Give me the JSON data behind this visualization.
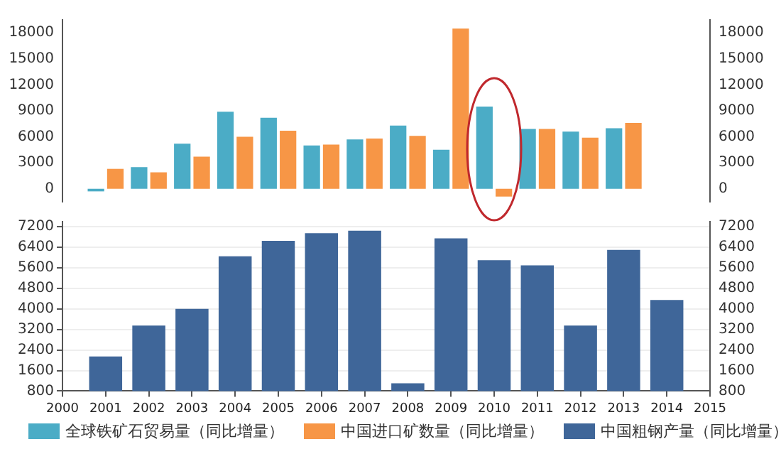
{
  "chart_data": [
    {
      "type": "bar",
      "x": [
        2001,
        2002,
        2003,
        2004,
        2005,
        2006,
        2007,
        2008,
        2009,
        2010,
        2011,
        2012,
        2013
      ],
      "xlim": [
        2000,
        2015
      ],
      "ylim": [
        -1500,
        19500
      ],
      "yticks": [
        0,
        3000,
        6000,
        9000,
        12000,
        15000,
        18000
      ],
      "y2lim": [
        -1500,
        19500
      ],
      "y2ticks": [
        0,
        3000,
        6000,
        9000,
        12000,
        15000,
        18000
      ],
      "tick_labels": "y",
      "grid": false,
      "legend": "bottom",
      "series": [
        {
          "name": "全球铁矿石贸易量（同比增量）",
          "color": "#4bacc6",
          "values": [
            -300,
            2500,
            5200,
            8900,
            8200,
            5000,
            5700,
            7300,
            4500,
            9500,
            6900,
            6600,
            7000
          ]
        },
        {
          "name": "中国进口矿数量（同比增量）",
          "color": "#f79646",
          "values": [
            2300,
            1900,
            3700,
            6000,
            6700,
            5100,
            5800,
            6100,
            18500,
            -900,
            6900,
            5900,
            7600
          ]
        }
      ]
    },
    {
      "type": "bar",
      "x": [
        2001,
        2002,
        2003,
        2004,
        2005,
        2006,
        2007,
        2008,
        2009,
        2010,
        2011,
        2012,
        2013,
        2014
      ],
      "xlim": [
        2000,
        2015
      ],
      "xticks": [
        2000,
        2001,
        2002,
        2003,
        2004,
        2005,
        2006,
        2007,
        2008,
        2009,
        2010,
        2011,
        2012,
        2013,
        2014,
        2015
      ],
      "ylim": [
        800,
        7400
      ],
      "yticks": [
        800,
        1600,
        2400,
        3200,
        4000,
        4800,
        5600,
        6400,
        7200
      ],
      "y2lim": [
        800,
        7400
      ],
      "y2ticks": [
        800,
        1600,
        2400,
        3200,
        4000,
        4800,
        5600,
        6400,
        7200
      ],
      "grid": "y",
      "legend": "bottom",
      "series": [
        {
          "name": "中国粗钢产量（同比增量）",
          "color": "#3f6699",
          "values": [
            2150,
            3350,
            4000,
            6050,
            6650,
            6950,
            7050,
            1100,
            6750,
            5900,
            5700,
            3350,
            6300,
            4350
          ]
        }
      ]
    }
  ]
}
